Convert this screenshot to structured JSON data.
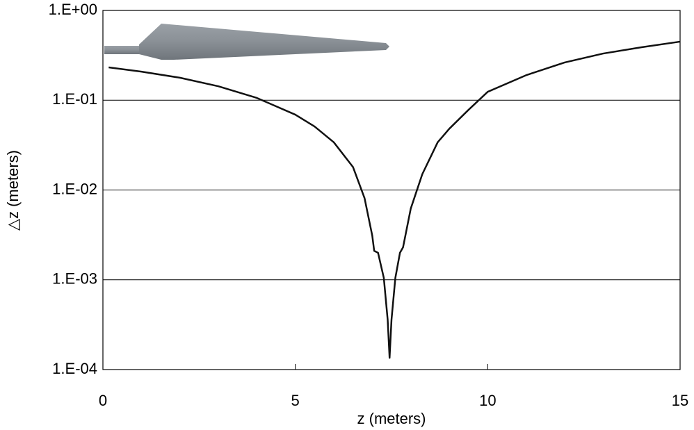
{
  "chart_data": {
    "type": "line",
    "x_label": "z (meters)",
    "y_label": "△z (meters)",
    "x": [
      0.15,
      1,
      2,
      3,
      4,
      5,
      5.5,
      6,
      6.5,
      6.8,
      7.0,
      7.05,
      7.15,
      7.3,
      7.4,
      7.45,
      7.5,
      7.6,
      7.72,
      7.8,
      8.0,
      8.3,
      8.7,
      9,
      9.5,
      10,
      11,
      12,
      13,
      14,
      15
    ],
    "values": [
      0.232,
      0.208,
      0.178,
      0.143,
      0.106,
      0.069,
      0.051,
      0.034,
      0.018,
      0.0081,
      0.0031,
      0.0021,
      0.002,
      0.00105,
      0.00036,
      0.000135,
      0.00036,
      0.00105,
      0.002,
      0.0023,
      0.0062,
      0.015,
      0.034,
      0.048,
      0.078,
      0.124,
      0.19,
      0.263,
      0.331,
      0.389,
      0.449
    ],
    "color": "#111111",
    "xlim": [
      0,
      15
    ],
    "xticks": [
      0,
      5,
      10,
      15
    ],
    "ylim": [
      0.0001,
      1
    ],
    "ylog": true,
    "yticks": [
      {
        "value": 0.0001,
        "label": "1.E-04"
      },
      {
        "value": 0.001,
        "label": "1.E-03"
      },
      {
        "value": 0.01,
        "label": "1.E-02"
      },
      {
        "value": 0.1,
        "label": "1.E-01"
      },
      {
        "value": 1,
        "label": "1.E+00"
      }
    ],
    "grid": true
  }
}
